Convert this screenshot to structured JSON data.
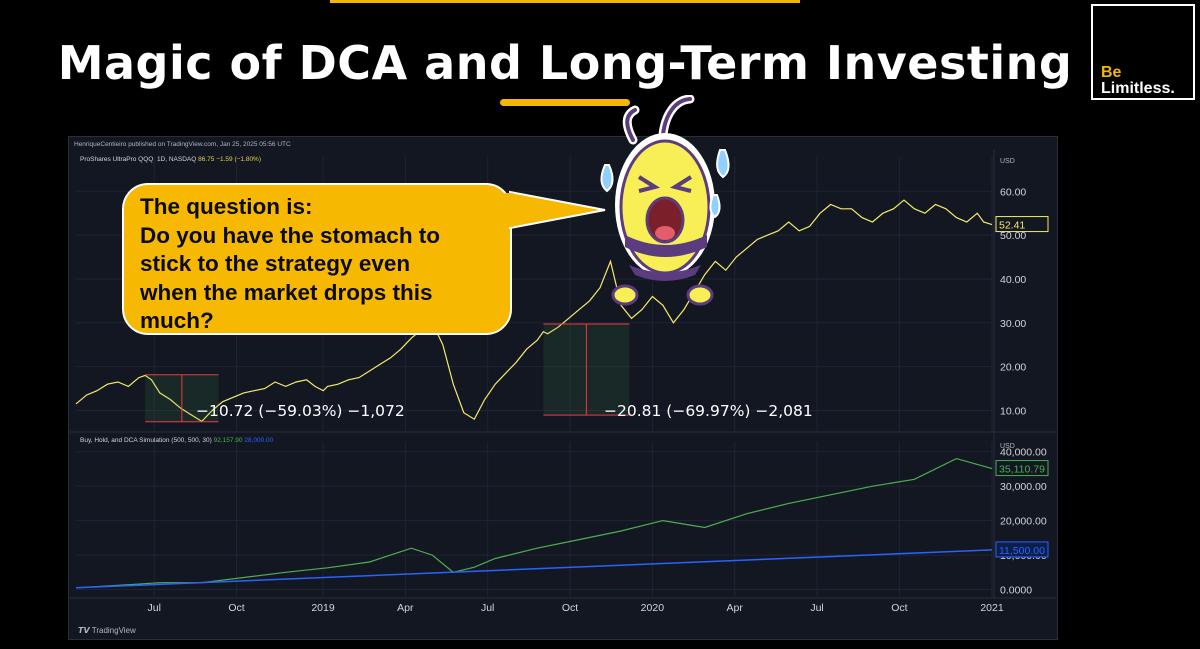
{
  "title": "Magic of DCA and Long-Term Investing",
  "logo": {
    "line1": "Be",
    "line2": "Limitless",
    "dot": "."
  },
  "publisher": "HenriqueCentieiro published on TradingView.com, Jan 25, 2025 05:56 UTC",
  "bubble_text": "The question is:\nDo you have the stomach to\nstick to the strategy even\nwhen the market drops this\nmuch?",
  "annotations": {
    "drop1": "−10.72 (−59.03%) −1,072",
    "drop2": "−20.81 (−69.97%) −2,081"
  },
  "tradingview_brand": "TradingView",
  "colors": {
    "accent": "#f2b705",
    "price_line": "#f5ea6a",
    "dca_line": "#4caf50",
    "invested_line": "#2962ff",
    "bg": "#131722"
  },
  "chart_data": [
    {
      "type": "line",
      "legend": {
        "name": "ProShares UltraPro QQQ, 1D, NASDAQ",
        "value": "86.75 −1.59 (−1.80%)"
      },
      "currency": "USD",
      "x_tick_labels": [
        "Jul",
        "Oct",
        "2019",
        "Apr",
        "Jul",
        "Oct",
        "2020",
        "Apr",
        "Jul",
        "Oct",
        "2021"
      ],
      "y_tick_labels": [
        "10.00",
        "20.00",
        "30.00",
        "40.00",
        "50.00",
        "60.00"
      ],
      "ylim": [
        6,
        66
      ],
      "last_value_label": "52.41",
      "series": [
        {
          "values_desc": "QQQ price (USD) at sampled time points",
          "x": [
            0,
            0.5,
            1,
            1.5,
            2,
            2.5,
            3,
            3.3,
            3.6,
            4,
            4.5,
            5,
            5.5,
            6,
            6.5,
            7,
            7.5,
            8,
            8.5,
            9,
            9.5,
            10,
            10.5,
            11,
            11.4,
            11.8,
            12,
            12.5,
            13,
            13.5,
            14,
            14.5,
            15,
            15.5,
            16,
            16.5,
            17,
            17.5,
            18,
            18.5,
            19,
            19.5,
            20,
            20.5,
            21,
            21.5,
            22,
            22.3,
            22.5,
            23,
            23.5,
            24,
            24.5,
            25,
            25.5,
            26,
            26.5,
            27,
            27.5,
            28,
            28.5,
            29,
            29.5,
            30,
            30.5,
            31,
            31.5,
            32,
            32.5,
            33,
            33.5,
            34,
            34.5,
            35,
            35.5,
            36,
            36.5,
            37,
            37.5,
            38,
            38.5,
            39,
            39.5,
            40,
            40.5,
            41,
            41.5,
            42,
            42.5,
            43,
            43.3,
            43.7
          ],
          "values": [
            11.5,
            13.5,
            14.5,
            16,
            16.5,
            15.5,
            17.5,
            18,
            17,
            14,
            12.5,
            10.5,
            9,
            7.5,
            10,
            12,
            13,
            14,
            14.5,
            15,
            16.5,
            15.5,
            16.5,
            17,
            15.5,
            14.5,
            15.5,
            16,
            17,
            17.5,
            19,
            20.5,
            22,
            24,
            26.5,
            28.5,
            30,
            25,
            16,
            9.5,
            8,
            12.5,
            16,
            18.5,
            21,
            24,
            26,
            28,
            27.5,
            29,
            31,
            33,
            35,
            38,
            44,
            34,
            31,
            33,
            36,
            34,
            30,
            33,
            37,
            41,
            44,
            42,
            45,
            47,
            49,
            50,
            51,
            53,
            51,
            52,
            55,
            57,
            56,
            56,
            54,
            53,
            55,
            56,
            58,
            56,
            55,
            57,
            56,
            54,
            53,
            55,
            53,
            52.4
          ]
        }
      ],
      "drawdowns": [
        {
          "label": "−10.72 (−59.03%) −1,072",
          "from": 18.16,
          "to": 7.44
        },
        {
          "label": "−20.81 (−69.97%) −2,081",
          "from": 29.74,
          "to": 8.93
        }
      ]
    },
    {
      "type": "line",
      "legend": {
        "name": "Buy, Hold, and DCA Simulation (500, 500, 30)",
        "value_1": "92,157.90",
        "value_2": "28,000.00"
      },
      "currency": "USD",
      "x_tick_labels": [
        "Jul",
        "Oct",
        "2019",
        "Apr",
        "Jul",
        "Oct",
        "2020",
        "Apr",
        "Jul",
        "Oct",
        "2021"
      ],
      "y_tick_labels": [
        "0.0000",
        "10,000.00",
        "20,000.00",
        "30,000.00",
        "40,000.00"
      ],
      "ylim": [
        -1000,
        40500
      ],
      "last_value_labels": [
        "35,110.79",
        "11,500.00"
      ],
      "series": [
        {
          "name": "DCA portfolio value",
          "x": [
            0,
            2,
            4,
            6,
            8,
            10,
            12,
            14,
            15,
            16,
            17,
            18,
            19,
            20,
            22,
            24,
            26,
            28,
            30,
            32,
            34,
            36,
            38,
            40,
            42,
            43.7
          ],
          "values": [
            500,
            1200,
            2000,
            2000,
            3500,
            5000,
            6300,
            8000,
            10000,
            12000,
            10000,
            5000,
            6500,
            9000,
            12000,
            14500,
            17000,
            20000,
            18000,
            22000,
            25000,
            27500,
            30000,
            32000,
            38000,
            35110.79
          ]
        },
        {
          "name": "Total invested",
          "x": [
            0,
            43.7
          ],
          "values": [
            500,
            11500
          ]
        }
      ]
    }
  ]
}
